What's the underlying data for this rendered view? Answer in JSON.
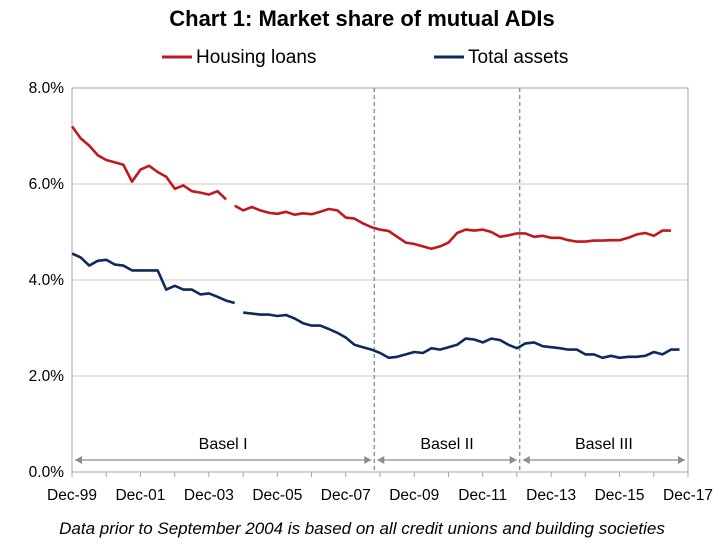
{
  "chart_data": {
    "type": "line",
    "title": "Chart 1: Market share of mutual ADIs",
    "footnote": "Data prior to September 2004 is based on all credit unions and building societies",
    "xlabel": "",
    "ylabel": "",
    "ylim": [
      0,
      8
    ],
    "y_ticks": [
      "0.0%",
      "2.0%",
      "4.0%",
      "6.0%",
      "8.0%"
    ],
    "y_tick_values": [
      0,
      2,
      4,
      6,
      8
    ],
    "x_range": [
      1999.917,
      2017.917
    ],
    "x_ticks": [
      "Dec-99",
      "Dec-01",
      "Dec-03",
      "Dec-05",
      "Dec-07",
      "Dec-09",
      "Dec-11",
      "Dec-13",
      "Dec-15",
      "Dec-17"
    ],
    "x_tick_values": [
      1999.917,
      2001.917,
      2003.917,
      2005.917,
      2007.917,
      2009.917,
      2011.917,
      2013.917,
      2015.917,
      2017.917
    ],
    "grid": "horizontal",
    "legend_position": "top",
    "series": [
      {
        "name": "Housing loans",
        "color": "#c0181f",
        "segments": [
          [
            [
              1999.92,
              7.2
            ],
            [
              2000.17,
              6.95
            ],
            [
              2000.42,
              6.8
            ],
            [
              2000.67,
              6.6
            ],
            [
              2000.92,
              6.5
            ],
            [
              2001.17,
              6.45
            ],
            [
              2001.42,
              6.4
            ],
            [
              2001.67,
              6.05
            ],
            [
              2001.92,
              6.3
            ],
            [
              2002.17,
              6.38
            ],
            [
              2002.42,
              6.25
            ],
            [
              2002.67,
              6.15
            ],
            [
              2002.92,
              5.9
            ],
            [
              2003.17,
              5.97
            ],
            [
              2003.42,
              5.85
            ],
            [
              2003.67,
              5.82
            ],
            [
              2003.92,
              5.78
            ],
            [
              2004.17,
              5.85
            ],
            [
              2004.42,
              5.68
            ]
          ],
          [
            [
              2004.67,
              5.55
            ],
            [
              2004.92,
              5.45
            ],
            [
              2005.17,
              5.52
            ],
            [
              2005.42,
              5.45
            ],
            [
              2005.67,
              5.4
            ],
            [
              2005.92,
              5.38
            ],
            [
              2006.17,
              5.42
            ],
            [
              2006.42,
              5.36
            ],
            [
              2006.67,
              5.39
            ],
            [
              2006.92,
              5.37
            ],
            [
              2007.17,
              5.42
            ],
            [
              2007.42,
              5.48
            ],
            [
              2007.67,
              5.45
            ],
            [
              2007.92,
              5.3
            ],
            [
              2008.17,
              5.28
            ],
            [
              2008.42,
              5.18
            ],
            [
              2008.67,
              5.1
            ],
            [
              2008.92,
              5.05
            ],
            [
              2009.17,
              5.02
            ],
            [
              2009.42,
              4.9
            ],
            [
              2009.67,
              4.78
            ],
            [
              2009.92,
              4.75
            ],
            [
              2010.17,
              4.7
            ],
            [
              2010.42,
              4.65
            ],
            [
              2010.67,
              4.7
            ],
            [
              2010.92,
              4.78
            ],
            [
              2011.17,
              4.98
            ],
            [
              2011.42,
              5.05
            ],
            [
              2011.67,
              5.03
            ],
            [
              2011.92,
              5.05
            ],
            [
              2012.17,
              5.0
            ],
            [
              2012.42,
              4.9
            ],
            [
              2012.67,
              4.93
            ],
            [
              2012.92,
              4.97
            ],
            [
              2013.17,
              4.97
            ],
            [
              2013.42,
              4.9
            ],
            [
              2013.67,
              4.92
            ],
            [
              2013.92,
              4.88
            ],
            [
              2014.17,
              4.88
            ],
            [
              2014.42,
              4.83
            ],
            [
              2014.67,
              4.8
            ],
            [
              2014.92,
              4.8
            ],
            [
              2015.17,
              4.82
            ],
            [
              2015.42,
              4.82
            ],
            [
              2015.67,
              4.83
            ],
            [
              2015.92,
              4.83
            ],
            [
              2016.17,
              4.88
            ],
            [
              2016.42,
              4.95
            ],
            [
              2016.67,
              4.98
            ],
            [
              2016.92,
              4.92
            ],
            [
              2017.17,
              5.03
            ],
            [
              2017.42,
              5.03
            ]
          ]
        ]
      },
      {
        "name": "Total assets",
        "color": "#0d2a5c",
        "segments": [
          [
            [
              1999.92,
              4.55
            ],
            [
              2000.17,
              4.47
            ],
            [
              2000.42,
              4.3
            ],
            [
              2000.67,
              4.4
            ],
            [
              2000.92,
              4.42
            ],
            [
              2001.17,
              4.32
            ],
            [
              2001.42,
              4.3
            ],
            [
              2001.67,
              4.2
            ],
            [
              2001.92,
              4.2
            ],
            [
              2002.17,
              4.2
            ],
            [
              2002.42,
              4.2
            ],
            [
              2002.67,
              3.8
            ],
            [
              2002.92,
              3.88
            ],
            [
              2003.17,
              3.8
            ],
            [
              2003.42,
              3.8
            ],
            [
              2003.67,
              3.7
            ],
            [
              2003.92,
              3.72
            ],
            [
              2004.17,
              3.65
            ],
            [
              2004.42,
              3.57
            ],
            [
              2004.67,
              3.52
            ]
          ],
          [
            [
              2004.92,
              3.32
            ],
            [
              2005.17,
              3.3
            ],
            [
              2005.42,
              3.28
            ],
            [
              2005.67,
              3.28
            ],
            [
              2005.92,
              3.25
            ],
            [
              2006.17,
              3.27
            ],
            [
              2006.42,
              3.2
            ],
            [
              2006.67,
              3.1
            ],
            [
              2006.92,
              3.05
            ],
            [
              2007.17,
              3.05
            ],
            [
              2007.42,
              2.98
            ],
            [
              2007.67,
              2.9
            ],
            [
              2007.92,
              2.8
            ],
            [
              2008.17,
              2.65
            ],
            [
              2008.42,
              2.6
            ],
            [
              2008.67,
              2.55
            ],
            [
              2008.92,
              2.48
            ],
            [
              2009.17,
              2.38
            ],
            [
              2009.42,
              2.4
            ],
            [
              2009.67,
              2.45
            ],
            [
              2009.92,
              2.5
            ],
            [
              2010.17,
              2.48
            ],
            [
              2010.42,
              2.58
            ],
            [
              2010.67,
              2.55
            ],
            [
              2010.92,
              2.6
            ],
            [
              2011.17,
              2.65
            ],
            [
              2011.42,
              2.78
            ],
            [
              2011.67,
              2.76
            ],
            [
              2011.92,
              2.7
            ],
            [
              2012.17,
              2.78
            ],
            [
              2012.42,
              2.75
            ],
            [
              2012.67,
              2.65
            ],
            [
              2012.92,
              2.58
            ],
            [
              2013.17,
              2.68
            ],
            [
              2013.42,
              2.7
            ],
            [
              2013.67,
              2.62
            ],
            [
              2013.92,
              2.6
            ],
            [
              2014.17,
              2.58
            ],
            [
              2014.42,
              2.55
            ],
            [
              2014.67,
              2.55
            ],
            [
              2014.92,
              2.45
            ],
            [
              2015.17,
              2.45
            ],
            [
              2015.42,
              2.38
            ],
            [
              2015.67,
              2.42
            ],
            [
              2015.92,
              2.38
            ],
            [
              2016.17,
              2.4
            ],
            [
              2016.42,
              2.4
            ],
            [
              2016.67,
              2.42
            ],
            [
              2016.92,
              2.5
            ],
            [
              2017.17,
              2.45
            ],
            [
              2017.42,
              2.55
            ],
            [
              2017.67,
              2.55
            ]
          ]
        ]
      }
    ],
    "periods": [
      {
        "label": "Basel I",
        "start": 1999.917,
        "end": 2008.75
      },
      {
        "label": "Basel II",
        "start": 2008.75,
        "end": 2013.0
      },
      {
        "label": "Basel III",
        "start": 2013.0,
        "end": 2017.917
      }
    ],
    "period_boundaries": [
      2008.75,
      2013.0
    ]
  }
}
